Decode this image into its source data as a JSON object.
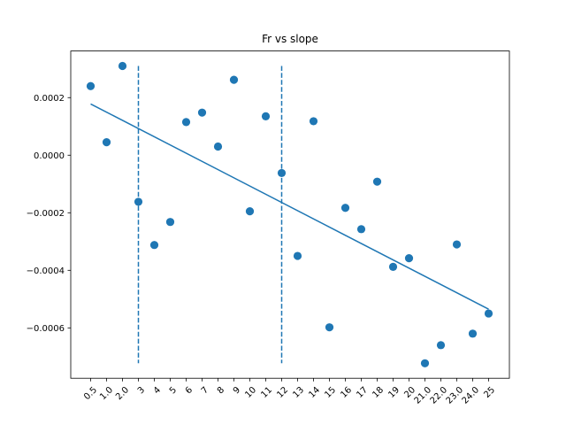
{
  "chart_data": {
    "type": "scatter",
    "title": "Fr vs slope",
    "xlabel": "",
    "ylabel": "",
    "categories": [
      "0.5",
      "1.0",
      "2.0",
      "3",
      "4",
      "5",
      "6",
      "7",
      "8",
      "9",
      "10",
      "11",
      "12",
      "13",
      "14",
      "15",
      "16",
      "17",
      "18",
      "19",
      "20",
      "21.0",
      "22.0",
      "23.0",
      "24.0",
      "25"
    ],
    "values": [
      0.00024,
      4.5e-05,
      0.00031,
      -0.000162,
      -0.000312,
      -0.000232,
      0.000115,
      0.000148,
      3e-05,
      0.000262,
      -0.000195,
      0.000135,
      -6.2e-05,
      -0.00035,
      0.000118,
      -0.000598,
      -0.000183,
      -0.000257,
      -9.2e-05,
      -0.000388,
      -0.000358,
      -0.000723,
      -0.00066,
      -0.00031,
      -0.00062,
      -0.00055
    ],
    "fit_line": {
      "start": 0.000178,
      "end": -0.000535
    },
    "vlines": [
      {
        "category": "3",
        "ymin": -0.000723,
        "ymax": 0.00031
      },
      {
        "category": "12",
        "ymin": -0.000723,
        "ymax": 0.00031
      }
    ],
    "ylim": [
      -0.000775,
      0.000362
    ],
    "yticks": [
      0.0002,
      0.0,
      -0.0002,
      -0.0004,
      -0.0006
    ],
    "ytick_labels": [
      "0.0002",
      "0.0000",
      "−0.0002",
      "−0.0004",
      "−0.0006"
    ],
    "colors": {
      "series": "#1f77b4"
    },
    "grid": false
  }
}
